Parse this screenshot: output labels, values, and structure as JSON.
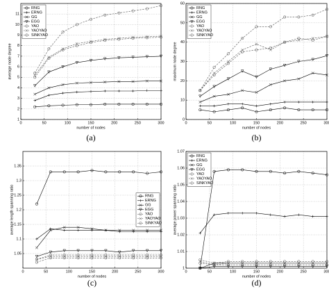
{
  "chart_data": [
    {
      "type": "line",
      "caption": "(a)",
      "xlabel": "number of nodes",
      "ylabel": "average node degree",
      "x": [
        30,
        60,
        90,
        120,
        150,
        180,
        210,
        240,
        270,
        300
      ],
      "xlim": [
        0,
        300
      ],
      "xticks": [
        0,
        50,
        100,
        150,
        200,
        250,
        300
      ],
      "ylim": [
        1,
        12
      ],
      "yticks": [
        1,
        2,
        3,
        4,
        5,
        6,
        7,
        8,
        9,
        10,
        11
      ],
      "grid": true,
      "legend": "upper left",
      "series": [
        {
          "name": "RNG",
          "color": "#000000",
          "marker": "circle",
          "dash": false,
          "values": [
            2.2,
            2.3,
            2.35,
            2.4,
            2.4,
            2.45,
            2.45,
            2.45,
            2.45,
            2.45
          ]
        },
        {
          "name": "ERNG",
          "color": "#000000",
          "marker": "plus",
          "dash": false,
          "values": [
            2.8,
            3.3,
            3.5,
            3.6,
            3.65,
            3.7,
            3.7,
            3.7,
            3.75,
            3.75
          ]
        },
        {
          "name": "GG",
          "color": "#000000",
          "marker": "x",
          "dash": false,
          "values": [
            3.4,
            4.0,
            4.3,
            4.45,
            4.5,
            4.55,
            4.6,
            4.6,
            4.65,
            4.65
          ]
        },
        {
          "name": "EGG",
          "color": "#000000",
          "marker": "triangle",
          "dash": false,
          "values": [
            4.2,
            5.5,
            6.0,
            6.4,
            6.6,
            6.75,
            6.85,
            6.9,
            6.95,
            7.0
          ]
        },
        {
          "name": "YAO",
          "color": "#555555",
          "marker": "circle",
          "dash": true,
          "values": [
            5.0,
            6.8,
            7.6,
            8.0,
            8.3,
            8.5,
            8.6,
            8.7,
            8.75,
            8.8
          ]
        },
        {
          "name": "YAOYAO",
          "color": "#555555",
          "marker": "x",
          "dash": true,
          "values": [
            5.2,
            6.9,
            7.7,
            8.2,
            8.4,
            8.6,
            8.7,
            8.8,
            8.85,
            8.9
          ]
        },
        {
          "name": "SINKYAO",
          "color": "#555555",
          "marker": "circle",
          "dash": true,
          "values": [
            5.4,
            7.7,
            9.3,
            10.0,
            10.5,
            10.9,
            11.1,
            11.3,
            11.5,
            11.8
          ]
        }
      ]
    },
    {
      "type": "line",
      "caption": "(b)",
      "xlabel": "number of nodes",
      "ylabel": "maximum node degree",
      "x": [
        30,
        60,
        90,
        120,
        150,
        180,
        210,
        240,
        270,
        300
      ],
      "xlim": [
        0,
        300
      ],
      "xticks": [
        0,
        50,
        100,
        150,
        200,
        250,
        300
      ],
      "ylim": [
        0,
        60
      ],
      "yticks": [
        0,
        10,
        20,
        30,
        40,
        50,
        60
      ],
      "grid": true,
      "legend": "upper left",
      "series": [
        {
          "name": "RNG",
          "color": "#000000",
          "marker": "circle",
          "dash": false,
          "values": [
            5,
            4,
            5,
            6,
            4,
            5,
            6,
            5,
            5,
            5
          ]
        },
        {
          "name": "ERNG",
          "color": "#000000",
          "marker": "plus",
          "dash": false,
          "values": [
            7,
            7,
            8,
            8,
            7,
            8,
            9,
            9,
            9,
            9
          ]
        },
        {
          "name": "GG",
          "color": "#000000",
          "marker": "x",
          "dash": false,
          "values": [
            9,
            12,
            13,
            15,
            14,
            18,
            20,
            21,
            24,
            23
          ]
        },
        {
          "name": "EGG",
          "color": "#000000",
          "marker": "triangle",
          "dash": false,
          "values": [
            12,
            17,
            21,
            25,
            22,
            26,
            28,
            30,
            31,
            33
          ]
        },
        {
          "name": "YAO",
          "color": "#555555",
          "marker": "circle",
          "dash": true,
          "values": [
            15,
            23,
            29,
            35,
            36,
            37,
            40,
            42,
            41,
            43
          ]
        },
        {
          "name": "YAOYAO",
          "color": "#555555",
          "marker": "x",
          "dash": true,
          "values": [
            15,
            24,
            30,
            36,
            39,
            36,
            40,
            41,
            42,
            43
          ]
        },
        {
          "name": "SINKYAO",
          "color": "#555555",
          "marker": "circle",
          "dash": true,
          "values": [
            15,
            27,
            34,
            42,
            48,
            48,
            53,
            53,
            54,
            57
          ]
        }
      ]
    },
    {
      "type": "line",
      "caption": "(c)",
      "xlabel": "number of nodes",
      "ylabel": "average length spanning ratio",
      "x": [
        30,
        60,
        90,
        120,
        150,
        180,
        210,
        240,
        270,
        300
      ],
      "xlim": [
        0,
        300
      ],
      "xticks": [
        0,
        50,
        100,
        150,
        200,
        250,
        300
      ],
      "ylim": [
        1.0,
        1.4
      ],
      "yticks": [
        1.05,
        1.1,
        1.15,
        1.2,
        1.25,
        1.3,
        1.35
      ],
      "grid": true,
      "legend": "center right",
      "series": [
        {
          "name": "RNG",
          "color": "#000000",
          "marker": "circle",
          "dash": false,
          "values": [
            1.22,
            1.33,
            1.33,
            1.33,
            1.335,
            1.33,
            1.33,
            1.33,
            1.325,
            1.33
          ]
        },
        {
          "name": "ERNG",
          "color": "#000000",
          "marker": "plus",
          "dash": false,
          "values": [
            1.1,
            1.135,
            1.13,
            1.13,
            1.13,
            1.13,
            1.125,
            1.125,
            1.125,
            1.125
          ]
        },
        {
          "name": "GG",
          "color": "#000000",
          "marker": "x",
          "dash": false,
          "values": [
            1.07,
            1.13,
            1.14,
            1.14,
            1.135,
            1.13,
            1.13,
            1.13,
            1.13,
            1.13
          ]
        },
        {
          "name": "EGG",
          "color": "#000000",
          "marker": "triangle",
          "dash": false,
          "values": [
            1.04,
            1.055,
            1.06,
            1.06,
            1.06,
            1.06,
            1.055,
            1.06,
            1.06,
            1.06
          ]
        },
        {
          "name": "YAO",
          "color": "#555555",
          "marker": "circle",
          "dash": true,
          "values": [
            1.03,
            1.045,
            1.045,
            1.045,
            1.045,
            1.045,
            1.045,
            1.045,
            1.045,
            1.045
          ]
        },
        {
          "name": "YAOYAO",
          "color": "#555555",
          "marker": "x",
          "dash": true,
          "values": [
            1.03,
            1.04,
            1.04,
            1.04,
            1.04,
            1.04,
            1.04,
            1.04,
            1.04,
            1.04
          ]
        },
        {
          "name": "SINKYAO",
          "color": "#555555",
          "marker": "circle",
          "dash": true,
          "values": [
            1.02,
            1.035,
            1.035,
            1.035,
            1.035,
            1.035,
            1.035,
            1.035,
            1.035,
            1.035
          ]
        }
      ]
    },
    {
      "type": "line",
      "caption": "(d)",
      "xlabel": "number of nodes",
      "ylabel": "average power spanning ratio",
      "x": [
        30,
        60,
        90,
        120,
        150,
        180,
        210,
        240,
        270,
        300
      ],
      "xlim": [
        0,
        300
      ],
      "xticks": [
        0,
        50,
        100,
        150,
        200,
        250,
        300
      ],
      "ylim": [
        1,
        1.07
      ],
      "yticks": [
        1,
        1.01,
        1.02,
        1.03,
        1.04,
        1.05,
        1.06,
        1.07
      ],
      "grid": true,
      "legend": "upper left",
      "series": [
        {
          "name": "RNG",
          "color": "#000000",
          "marker": "circle",
          "dash": false,
          "values": [
            1.0,
            1.058,
            1.059,
            1.059,
            1.058,
            1.058,
            1.057,
            1.058,
            1.057,
            1.056
          ]
        },
        {
          "name": "ERNG",
          "color": "#000000",
          "marker": "plus",
          "dash": false,
          "values": [
            1.021,
            1.032,
            1.033,
            1.033,
            1.033,
            1.032,
            1.031,
            1.032,
            1.031,
            1.031
          ]
        },
        {
          "name": "GG",
          "color": "#000000",
          "marker": "x",
          "dash": false,
          "values": [
            1.0,
            1.003,
            1.003,
            1.003,
            1.003,
            1.003,
            1.003,
            1.003,
            1.003,
            1.003
          ]
        },
        {
          "name": "EGG",
          "color": "#000000",
          "marker": "triangle",
          "dash": false,
          "values": [
            1.0,
            1.001,
            1.001,
            1.001,
            1.001,
            1.001,
            1.001,
            1.001,
            1.001,
            1.001
          ]
        },
        {
          "name": "YAO",
          "color": "#555555",
          "marker": "circle",
          "dash": true,
          "values": [
            1.005,
            1.003,
            1.004,
            1.004,
            1.004,
            1.004,
            1.004,
            1.004,
            1.004,
            1.004
          ]
        },
        {
          "name": "YAOYAO",
          "color": "#555555",
          "marker": "x",
          "dash": true,
          "values": [
            1.004,
            1.002,
            1.003,
            1.003,
            1.003,
            1.003,
            1.003,
            1.003,
            1.003,
            1.003
          ]
        },
        {
          "name": "SINKYAO",
          "color": "#555555",
          "marker": "circle",
          "dash": true,
          "values": [
            1.003,
            1.002,
            1.002,
            1.002,
            1.002,
            1.002,
            1.002,
            1.002,
            1.002,
            1.002
          ]
        }
      ]
    }
  ]
}
